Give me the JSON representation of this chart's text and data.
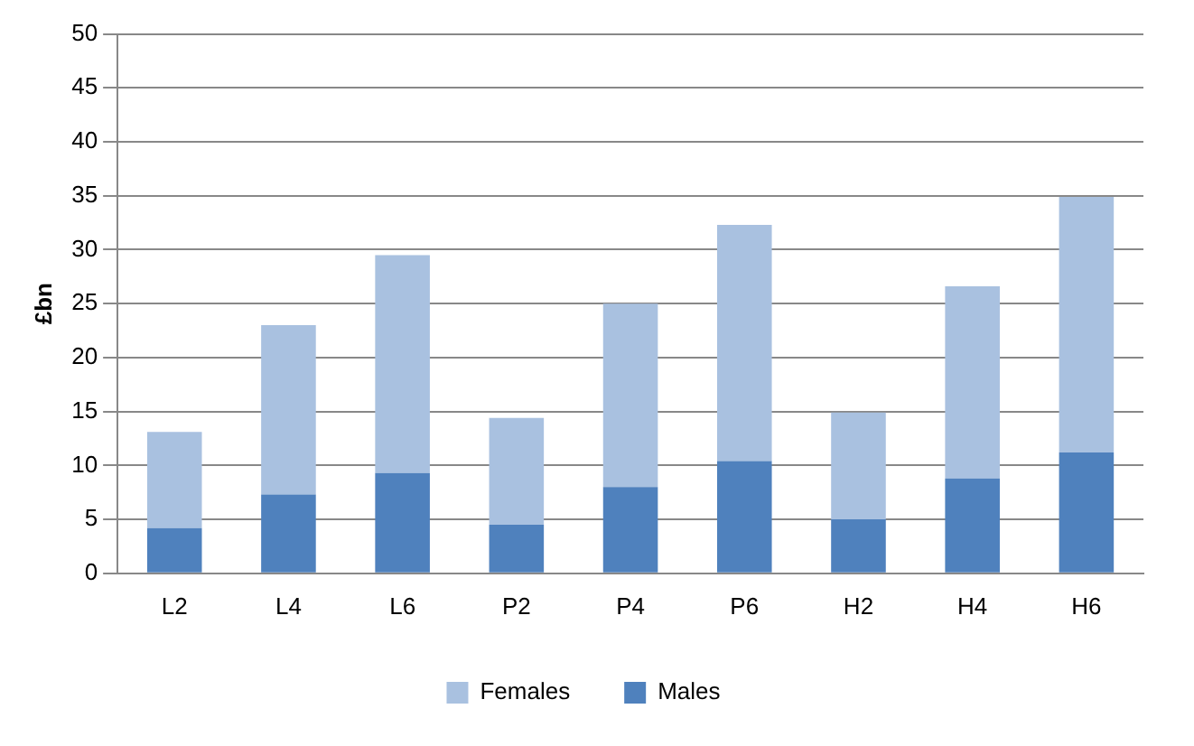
{
  "chart_data": {
    "type": "bar",
    "stacked": true,
    "ylabel": "£bn",
    "categories": [
      "L2",
      "L4",
      "L6",
      "P2",
      "P4",
      "P6",
      "H2",
      "H4",
      "H6"
    ],
    "series": [
      {
        "name": "Males",
        "color": "#4f81bd",
        "values": [
          4.2,
          7.3,
          9.3,
          4.5,
          8.0,
          10.4,
          5.0,
          8.8,
          11.2
        ]
      },
      {
        "name": "Females",
        "color": "#a9c1e0",
        "values": [
          8.9,
          15.7,
          20.2,
          9.9,
          17.0,
          21.9,
          9.9,
          17.8,
          23.7
        ]
      }
    ],
    "ylim": [
      0,
      50
    ],
    "yticks": [
      0,
      5,
      10,
      15,
      20,
      25,
      30,
      35,
      40,
      45,
      50
    ],
    "grid": "y",
    "legend": "bottom"
  }
}
